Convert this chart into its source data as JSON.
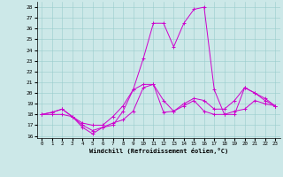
{
  "xlabel": "Windchill (Refroidissement éolien,°C)",
  "bg_color": "#cce8e8",
  "line_color": "#cc00cc",
  "xlim": [
    -0.5,
    23.5
  ],
  "ylim": [
    15.8,
    28.5
  ],
  "xticks": [
    0,
    1,
    2,
    3,
    4,
    5,
    6,
    7,
    8,
    9,
    10,
    11,
    12,
    13,
    14,
    15,
    16,
    17,
    18,
    19,
    20,
    21,
    22,
    23
  ],
  "yticks": [
    16,
    17,
    18,
    19,
    20,
    21,
    22,
    23,
    24,
    25,
    26,
    27,
    28
  ],
  "lines": [
    {
      "x": [
        0,
        1,
        2,
        3,
        4,
        5,
        6,
        7,
        8,
        9,
        10,
        11,
        12,
        13,
        14,
        15,
        16,
        17,
        18,
        19,
        20,
        21,
        22,
        23
      ],
      "y": [
        18,
        18,
        18,
        17.8,
        16.8,
        16.2,
        16.8,
        17.2,
        17.5,
        18.3,
        20.5,
        20.8,
        18.2,
        18.3,
        18.8,
        19.3,
        18.3,
        18.0,
        18.0,
        18.3,
        18.5,
        19.3,
        19.0,
        18.8
      ]
    },
    {
      "x": [
        0,
        1,
        2,
        3,
        4,
        5,
        6,
        7,
        8,
        9,
        10,
        11,
        12,
        13,
        14,
        15,
        16,
        17,
        18,
        19,
        20,
        21,
        22,
        23
      ],
      "y": [
        18,
        18.2,
        18.5,
        17.8,
        17.2,
        17.0,
        17.0,
        17.8,
        18.8,
        20.3,
        23.2,
        26.5,
        26.5,
        24.3,
        26.5,
        27.8,
        28.0,
        20.3,
        18.0,
        18.0,
        20.5,
        20.0,
        19.3,
        18.8
      ]
    },
    {
      "x": [
        0,
        1,
        2,
        3,
        4,
        5,
        6,
        7,
        8,
        9,
        10,
        11,
        12,
        13,
        14,
        15,
        16,
        17,
        18,
        19,
        20,
        21,
        22,
        23
      ],
      "y": [
        18,
        18.2,
        18.5,
        17.8,
        17.0,
        16.5,
        16.8,
        17.0,
        18.3,
        20.3,
        20.8,
        20.8,
        19.3,
        18.3,
        19.0,
        19.5,
        19.3,
        18.5,
        18.5,
        19.3,
        20.5,
        20.0,
        19.5,
        18.8
      ]
    }
  ]
}
